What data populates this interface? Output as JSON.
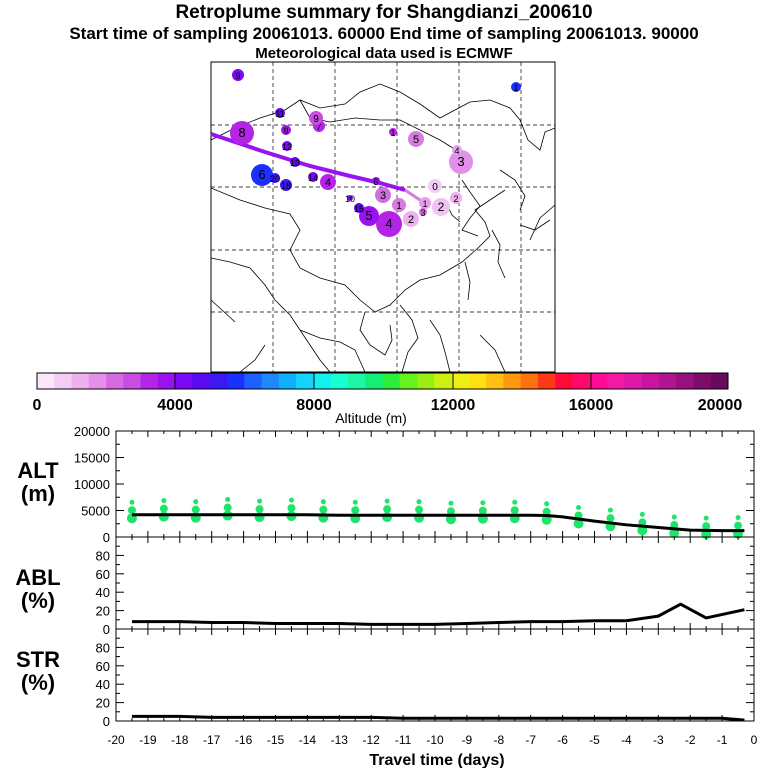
{
  "header": {
    "title": "Retroplume summary for Shangdianzi_200610",
    "sampling_line": "Start time of sampling 20061013. 60000     End time of sampling 20061013. 90000",
    "met_line": "Meteorological data used is ECMWF"
  },
  "colorbar": {
    "label": "Altitude (m)",
    "ticks": [
      "0",
      "4000",
      "8000",
      "12000",
      "16000",
      "20000"
    ],
    "colors": [
      "#fbe6fb",
      "#f5ccf5",
      "#eeb0ee",
      "#e48fe8",
      "#d66ae0",
      "#c94de0",
      "#b324e6",
      "#9a12f0",
      "#7a08f5",
      "#5a0aee",
      "#3c18f2",
      "#1a30ff",
      "#1e60ff",
      "#1e88ff",
      "#10b0ff",
      "#12d4ff",
      "#14f0f0",
      "#18ffd0",
      "#1ef7a8",
      "#12ee78",
      "#2aee3a",
      "#66f21e",
      "#9aee12",
      "#ccf010",
      "#f0f010",
      "#ffe010",
      "#ffc010",
      "#ff9a10",
      "#ff7010",
      "#ff3818",
      "#ff0a38",
      "#ff0a6a",
      "#ff0c96",
      "#f51aa6",
      "#e018a8",
      "#c814a0",
      "#b01490",
      "#98107e",
      "#7e0c6a",
      "#6a0a5c"
    ]
  },
  "map": {
    "clusters": [
      {
        "label": "1",
        "color": "#d67be0",
        "r": 7
      },
      {
        "label": "1",
        "color": "#e89cee",
        "r": 6
      },
      {
        "label": "2",
        "color": "#eeb0ee",
        "r": 8
      },
      {
        "label": "2",
        "color": "#f2c0f2",
        "r": 9
      },
      {
        "label": "2",
        "color": "#eeb0ee",
        "r": 6
      },
      {
        "label": "3",
        "color": "#e090e8",
        "r": 12
      },
      {
        "label": "3",
        "color": "#d070e0",
        "r": 8
      },
      {
        "label": "4",
        "color": "#e4a2ea",
        "r": 5
      },
      {
        "label": "4",
        "color": "#b324e6",
        "r": 13
      },
      {
        "label": "5",
        "color": "#d67be0",
        "r": 8
      },
      {
        "label": "5",
        "color": "#9a12f0",
        "r": 10
      },
      {
        "label": "6",
        "color": "#1a30ff",
        "r": 11
      },
      {
        "label": "8",
        "color": "#b324e6",
        "r": 12
      },
      {
        "label": "9",
        "color": "#7a08f5",
        "r": 6
      },
      {
        "label": "4",
        "color": "#b324e6",
        "r": 8
      },
      {
        "label": "7",
        "color": "#b324e6",
        "r": 6
      },
      {
        "label": "9",
        "color": "#a018e8",
        "r": 5
      },
      {
        "label": "9",
        "color": "#c94de0",
        "r": 7
      },
      {
        "label": "10",
        "color": "#7a08f5",
        "r": 3
      },
      {
        "label": "11",
        "color": "#5a0aee",
        "r": 5
      },
      {
        "label": "12",
        "color": "#7a08f5",
        "r": 5
      },
      {
        "label": "13",
        "color": "#5a0aee",
        "r": 5
      },
      {
        "label": "14",
        "color": "#7a08f5",
        "r": 5
      },
      {
        "label": "15",
        "color": "#5a0aee",
        "r": 5
      },
      {
        "label": "18",
        "color": "#3c18f2",
        "r": 6
      },
      {
        "label": "20",
        "color": "#3c18f2",
        "r": 5
      },
      {
        "label": "1",
        "color": "#b324e6",
        "r": 4
      },
      {
        "label": "0",
        "color": "#f5ccf5",
        "r": 7
      },
      {
        "label": "3",
        "color": "#d070e0",
        "r": 4
      },
      {
        "label": "6",
        "color": "#9a12f0",
        "r": 4
      }
    ]
  },
  "chart_data": [
    {
      "type": "scatter+line",
      "panel": "ALT",
      "ylabel": "ALT (m)",
      "ylim": [
        0,
        20000
      ],
      "yticks": [
        "0",
        "5000",
        "10000",
        "15000",
        "20000"
      ],
      "xlim": [
        -20,
        0
      ],
      "line": {
        "x": [
          -19.5,
          -18,
          -17,
          -16,
          -15,
          -14,
          -13,
          -12,
          -11,
          -10,
          -9,
          -8,
          -7,
          -6.5,
          -6,
          -5,
          -4,
          -3,
          -2,
          -1,
          -0.3
        ],
        "y": [
          4200,
          4200,
          4200,
          4200,
          4200,
          4200,
          4100,
          4100,
          4100,
          4100,
          4100,
          4100,
          4100,
          4050,
          3800,
          3000,
          2300,
          1800,
          1300,
          1200,
          1200
        ]
      },
      "points": {
        "x": [
          -19.5,
          -18.5,
          -17.5,
          -16.5,
          -15.5,
          -14.5,
          -13.5,
          -12.5,
          -11.5,
          -10.5,
          -9.5,
          -8.5,
          -7.5,
          -6.5,
          -5.5,
          -4.5,
          -3.5,
          -2.5,
          -1.5,
          -0.5
        ],
        "y": [
          4300,
          4600,
          4400,
          4800,
          4500,
          4700,
          4400,
          4300,
          4500,
          4400,
          4100,
          4200,
          4300,
          4000,
          3300,
          2800,
          2000,
          1500,
          1300,
          1400
        ]
      }
    },
    {
      "type": "line",
      "panel": "ABL",
      "ylabel": "ABL (%)",
      "ylim": [
        0,
        100
      ],
      "yticks": [
        "0",
        "20",
        "40",
        "60",
        "80"
      ],
      "xlim": [
        -20,
        0
      ],
      "x": [
        -19.5,
        -18,
        -17,
        -16,
        -15,
        -14,
        -13,
        -12,
        -11,
        -10,
        -9,
        -8,
        -7,
        -6,
        -5,
        -4,
        -3,
        -2.3,
        -1.5,
        -0.3
      ],
      "y": [
        8,
        8,
        7,
        7,
        6,
        6,
        6,
        5,
        5,
        5,
        6,
        7,
        8,
        8,
        9,
        9,
        14,
        27,
        12,
        21
      ]
    },
    {
      "type": "line",
      "panel": "STR",
      "ylabel": "STR (%)",
      "ylim": [
        0,
        100
      ],
      "yticks": [
        "0",
        "20",
        "40",
        "60",
        "80"
      ],
      "xlim": [
        -20,
        0
      ],
      "xlabel": "Travel time (days)",
      "xticks": [
        "-20",
        "-19",
        "-18",
        "-17",
        "-16",
        "-15",
        "-14",
        "-13",
        "-12",
        "-11",
        "-10",
        "-9",
        "-8",
        "-7",
        "-6",
        "-5",
        "-4",
        "-3",
        "-2",
        "-1",
        "0"
      ],
      "x": [
        -19.5,
        -18,
        -17,
        -16,
        -15,
        -14,
        -13,
        -12,
        -11,
        -10,
        -9,
        -8,
        -7,
        -6,
        -5,
        -4,
        -3,
        -2,
        -1,
        -0.3
      ],
      "y": [
        5,
        5,
        4,
        4,
        4,
        4,
        4,
        4,
        3,
        3,
        3,
        3,
        3,
        3,
        3,
        3,
        3,
        3,
        3,
        1
      ]
    }
  ],
  "panel_labels": {
    "alt": [
      "ALT",
      "(m)"
    ],
    "abl": [
      "ABL",
      "(%)"
    ],
    "str": [
      "STR",
      "(%)"
    ]
  }
}
